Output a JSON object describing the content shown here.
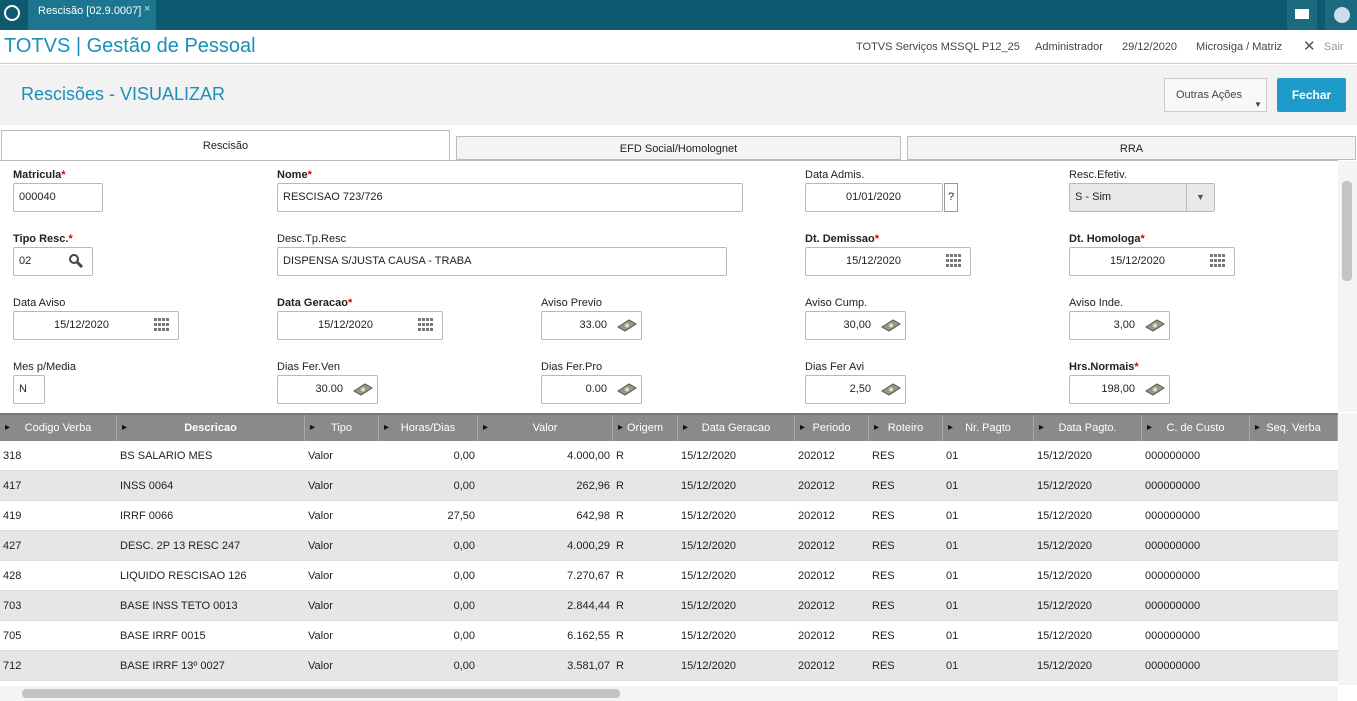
{
  "tab": {
    "title": "Rescisão [02.9.0007]",
    "close": "×"
  },
  "header": {
    "app": "TOTVS | Gestão de Pessoal",
    "env": "TOTVS Serviços MSSQL P12_25",
    "user": "Administrador",
    "date": "29/12/2020",
    "branch": "Microsiga / Matriz",
    "exit": "Sair"
  },
  "page": {
    "title": "Rescisões - VISUALIZAR",
    "actions": [
      "Outras Ações",
      "Fechar"
    ]
  },
  "tabs": [
    "Rescisão",
    "EFD Social/Homolognet",
    "RRA"
  ],
  "required_mark": "*",
  "help": "?",
  "fields": [
    {
      "label": "Matricula",
      "required": true,
      "value": "000040"
    },
    {
      "label": "Nome",
      "required": true,
      "value": "RESCISAO 723/726"
    },
    {
      "label": "Data Admis.",
      "required": false,
      "value": "01/01/2020"
    },
    {
      "label": "Resc.Efetiv.",
      "required": false,
      "value": "S - Sim"
    },
    {
      "label": "Tipo Resc.",
      "required": true,
      "value": "02"
    },
    {
      "label": "Desc.Tp.Resc",
      "required": false,
      "value": "DISPENSA S/JUSTA CAUSA - TRABA"
    },
    {
      "label": "Dt. Demissao",
      "required": true,
      "value": "15/12/2020"
    },
    {
      "label": "Dt. Homologa",
      "required": true,
      "value": "15/12/2020"
    },
    {
      "label": "Data Aviso",
      "required": false,
      "value": "15/12/2020"
    },
    {
      "label": "Data Geracao",
      "required": true,
      "value": "15/12/2020"
    },
    {
      "label": "Aviso Previo",
      "required": false,
      "value": "33.00"
    },
    {
      "label": "Aviso Cump.",
      "required": false,
      "value": "30,00"
    },
    {
      "label": "Aviso Inde.",
      "required": false,
      "value": "3,00"
    },
    {
      "label": "Mes p/Media",
      "required": false,
      "value": "N"
    },
    {
      "label": "Dias Fer.Ven",
      "required": false,
      "value": "30.00"
    },
    {
      "label": "Dias Fer.Pro",
      "required": false,
      "value": "0.00"
    },
    {
      "label": "Dias Fer Avi",
      "required": false,
      "value": "2,50"
    },
    {
      "label": "Hrs.Normais",
      "required": true,
      "value": "198,00"
    }
  ],
  "table": {
    "columns": [
      "Codigo Verba",
      "Descricao",
      "Tipo",
      "Horas/Dias",
      "Valor",
      "Origem",
      "Data Geracao",
      "Periodo",
      "Roteiro",
      "Nr. Pagto",
      "Data Pagto.",
      "C. de Custo",
      "Seq. Verba"
    ],
    "rows": [
      [
        "318",
        "BS SALARIO MES",
        "Valor",
        "0,00",
        "4.000,00",
        "R",
        "15/12/2020",
        "202012",
        "RES",
        "01",
        "15/12/2020",
        "000000000"
      ],
      [
        "417",
        "INSS 0064",
        "Valor",
        "0,00",
        "262,96",
        "R",
        "15/12/2020",
        "202012",
        "RES",
        "01",
        "15/12/2020",
        "000000000"
      ],
      [
        "419",
        "IRRF 0066",
        "Valor",
        "27,50",
        "642,98",
        "R",
        "15/12/2020",
        "202012",
        "RES",
        "01",
        "15/12/2020",
        "000000000"
      ],
      [
        "427",
        "DESC. 2P 13 RESC 247",
        "Valor",
        "0,00",
        "4.000,29",
        "R",
        "15/12/2020",
        "202012",
        "RES",
        "01",
        "15/12/2020",
        "000000000"
      ],
      [
        "428",
        "LIQUIDO RESCISAO 126",
        "Valor",
        "0,00",
        "7.270,67",
        "R",
        "15/12/2020",
        "202012",
        "RES",
        "01",
        "15/12/2020",
        "000000000"
      ],
      [
        "703",
        "BASE INSS TETO 0013",
        "Valor",
        "0,00",
        "2.844,44",
        "R",
        "15/12/2020",
        "202012",
        "RES",
        "01",
        "15/12/2020",
        "000000000"
      ],
      [
        "705",
        "BASE IRRF 0015",
        "Valor",
        "0,00",
        "6.162,55",
        "R",
        "15/12/2020",
        "202012",
        "RES",
        "01",
        "15/12/2020",
        "000000000"
      ],
      [
        "712",
        "BASE IRRF 13º 0027",
        "Valor",
        "0,00",
        "3.581,07",
        "R",
        "15/12/2020",
        "202012",
        "RES",
        "01",
        "15/12/2020",
        "000000000"
      ]
    ]
  }
}
